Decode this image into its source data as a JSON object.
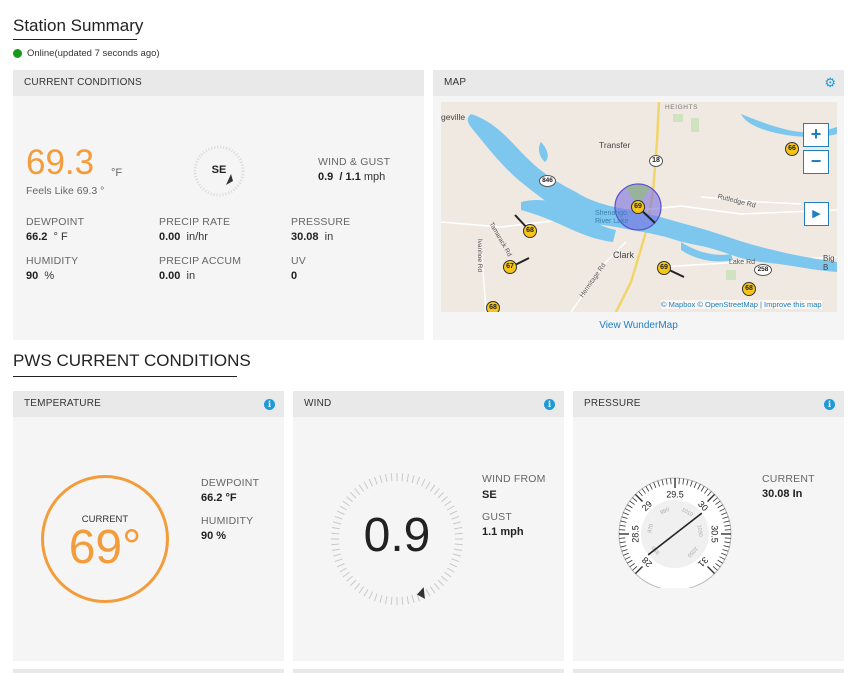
{
  "station": {
    "title": "Station Summary",
    "status_text": "Online(updated 7 seconds ago)",
    "status_color": "#1a9a1a"
  },
  "current_conditions": {
    "header": "CURRENT CONDITIONS",
    "temperature": "69.3",
    "temperature_unit": "°F",
    "feels_like": "Feels Like 69.3 °",
    "wind_dir": "SE",
    "wind_gust_label": "WIND & GUST",
    "wind_gust_value": "0.9",
    "wind_gust_rest": "/ 1.1",
    "wind_gust_unit": "mph",
    "dewpoint_label": "DEWPOINT",
    "dewpoint_value": "66.2",
    "dewpoint_unit": "° F",
    "precip_rate_label": "PRECIP RATE",
    "precip_rate_value": "0.00",
    "precip_rate_unit": "in/hr",
    "pressure_label": "PRESSURE",
    "pressure_value": "30.08",
    "pressure_unit": "in",
    "humidity_label": "HUMIDITY",
    "humidity_value": "90",
    "humidity_unit": "%",
    "precip_accum_label": "PRECIP ACCUM",
    "precip_accum_value": "0.00",
    "precip_accum_unit": "in",
    "uv_label": "UV",
    "uv_value": "0",
    "accent_color": "#f39c3c"
  },
  "map": {
    "header": "MAP",
    "zoom_in": "+",
    "zoom_out": "−",
    "play": "▶",
    "attribution": "© Mapbox © OpenStreetMap | Improve this map",
    "view_link": "View WunderMap",
    "place_labels": [
      "geville",
      "HEIGHTS",
      "Transfer",
      "Clark",
      "Rutledge Rd",
      "Lake Rd",
      "Big B",
      "Shenango River Lake",
      "Tamarack Rd",
      "Ivanhoe Rd",
      "Hermitage Rd"
    ],
    "road_shields": [
      "18",
      "846",
      "258"
    ],
    "station_markers": [
      "66",
      "69",
      "68",
      "67",
      "69",
      "68",
      "68"
    ]
  },
  "pws": {
    "title": "PWS CURRENT CONDITIONS"
  },
  "temperature_panel": {
    "header": "TEMPERATURE",
    "current_label": "CURRENT",
    "current_value": "69°",
    "dewpoint_label": "DEWPOINT",
    "dewpoint_value": "66.2 °F",
    "humidity_label": "HUMIDITY",
    "humidity_value": "90 %"
  },
  "wind_panel": {
    "header": "WIND",
    "speed": "0.9",
    "wind_from_label": "WIND FROM",
    "wind_from_value": "SE",
    "gust_label": "GUST",
    "gust_value": "1.1 mph"
  },
  "pressure_panel": {
    "header": "PRESSURE",
    "current_label": "CURRENT",
    "current_value": "30.08 In",
    "outer_ticks": [
      "28",
      "28.5",
      "29",
      "29.5",
      "30",
      "30.5",
      "31"
    ],
    "inner_ticks": [
      "950",
      "970",
      "990",
      "1010",
      "1030",
      "1050"
    ],
    "gauge_value": 30.08
  }
}
